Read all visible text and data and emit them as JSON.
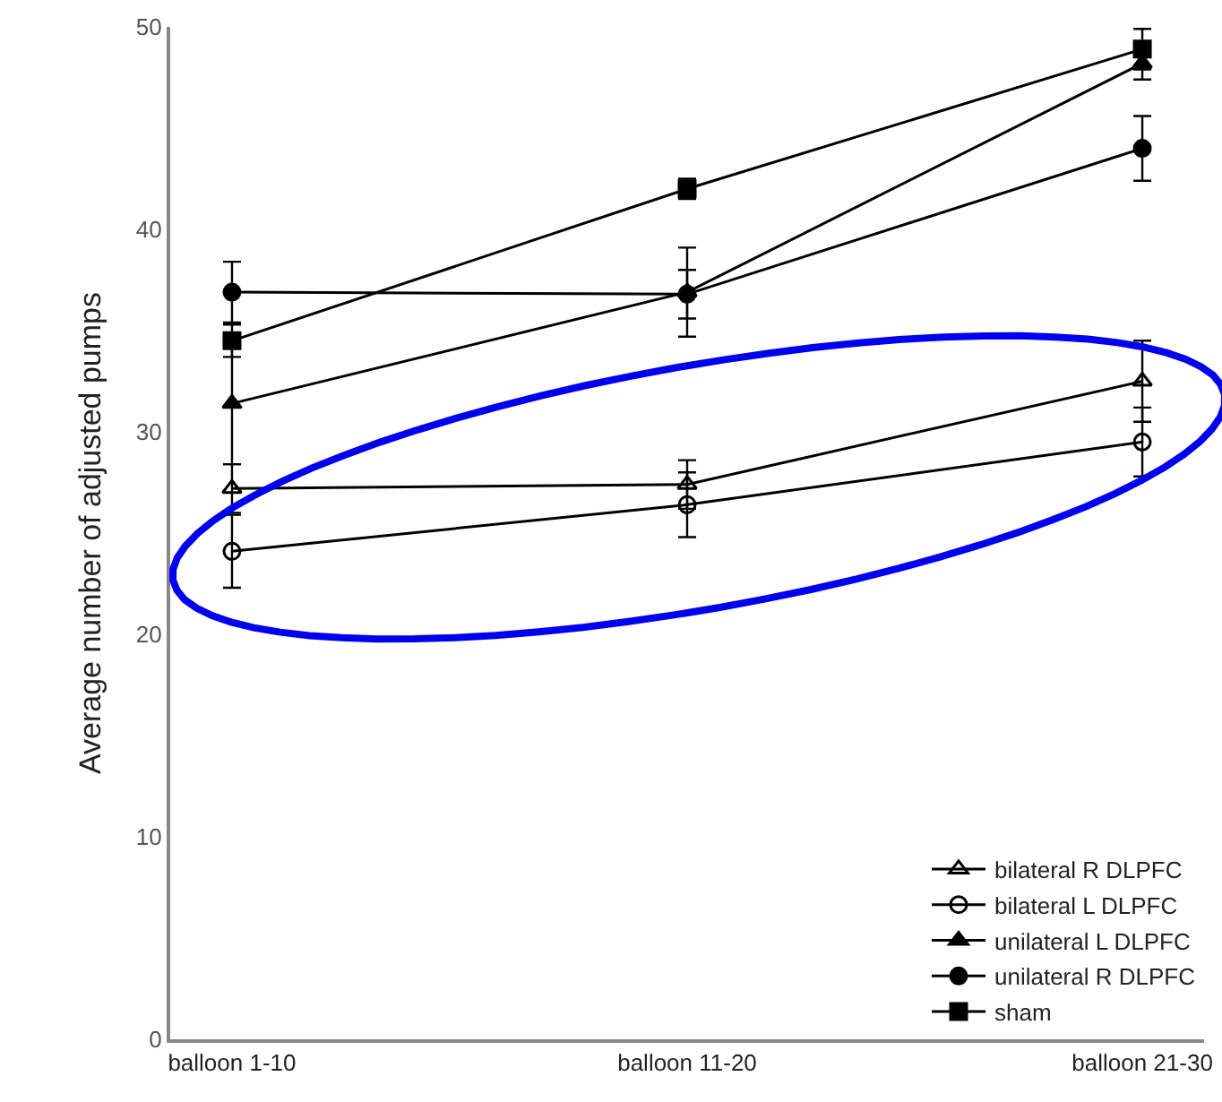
{
  "chart_data": {
    "type": "line",
    "ylabel": "Average number of adjusted pumps",
    "categories": [
      "balloon 1-10",
      "balloon 11-20",
      "balloon 21-30"
    ],
    "ylim": [
      0,
      50
    ],
    "yticks": [
      0,
      10,
      20,
      30,
      40,
      50
    ],
    "legend": "bottom right",
    "series": [
      {
        "name": "bilateral R DLPFC",
        "color": "#000000",
        "marker": "triangle-open",
        "values": [
          27.2,
          27.4,
          32.5
        ],
        "errors": [
          1.2,
          1.2,
          2.0
        ]
      },
      {
        "name": "bilateral L DLPFC",
        "color": "#000000",
        "marker": "circle-open",
        "values": [
          24.1,
          26.4,
          29.5
        ],
        "errors": [
          1.8,
          1.6,
          1.7
        ]
      },
      {
        "name": "unilateral L DLPFC",
        "color": "#000000",
        "marker": "triangle",
        "values": [
          31.4,
          36.9,
          48.2
        ],
        "errors": [
          3.0,
          2.2,
          0.8
        ]
      },
      {
        "name": "unilateral R DLPFC",
        "color": "#000000",
        "marker": "circle",
        "values": [
          36.9,
          36.8,
          44.0
        ],
        "errors": [
          1.5,
          1.2,
          1.6
        ]
      },
      {
        "name": "sham",
        "color": "#000000",
        "marker": "square",
        "values": [
          34.5,
          42.0,
          48.9
        ],
        "errors": [
          0.8,
          0.5,
          1.0
        ]
      }
    ]
  }
}
